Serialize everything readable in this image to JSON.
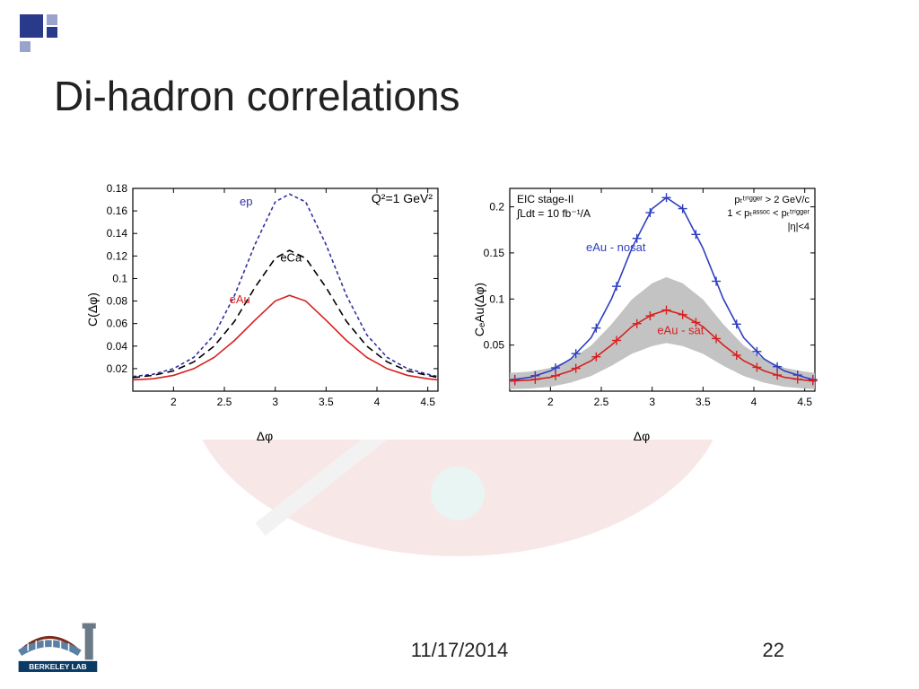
{
  "slide": {
    "title": "Di-hadron correlations",
    "date": "11/17/2014",
    "page": "22",
    "accent_color": "#2a3a8a",
    "corner_light": "#9aa3cc"
  },
  "left_chart": {
    "type": "line",
    "title": "Q²=1 GeV²",
    "title_fontsize": 14,
    "xlabel": "Δφ",
    "ylabel": "C(Δφ)",
    "label_fontsize": 14,
    "xlim": [
      1.6,
      4.6
    ],
    "ylim": [
      0,
      0.18
    ],
    "xtick_start": 2,
    "xtick_step": 0.5,
    "ytick_start": 0.02,
    "ytick_step": 0.02,
    "background_color": "#ffffff",
    "axis_color": "#000000",
    "tick_len": 5,
    "series": [
      {
        "name": "ep",
        "color": "#3030a0",
        "width": 1.6,
        "dash": "4 3",
        "label_pos": [
          2.65,
          0.165
        ],
        "data": [
          [
            1.6,
            0.013
          ],
          [
            1.8,
            0.015
          ],
          [
            2.0,
            0.02
          ],
          [
            2.2,
            0.03
          ],
          [
            2.4,
            0.05
          ],
          [
            2.6,
            0.085
          ],
          [
            2.8,
            0.13
          ],
          [
            3.0,
            0.168
          ],
          [
            3.14,
            0.175
          ],
          [
            3.3,
            0.168
          ],
          [
            3.5,
            0.13
          ],
          [
            3.7,
            0.085
          ],
          [
            3.9,
            0.05
          ],
          [
            4.1,
            0.03
          ],
          [
            4.3,
            0.02
          ],
          [
            4.5,
            0.015
          ],
          [
            4.6,
            0.013
          ]
        ]
      },
      {
        "name": "eCa",
        "color": "#000000",
        "width": 1.6,
        "dash": "8 5",
        "label_pos": [
          3.05,
          0.115
        ],
        "data": [
          [
            1.6,
            0.012
          ],
          [
            1.8,
            0.014
          ],
          [
            2.0,
            0.018
          ],
          [
            2.2,
            0.026
          ],
          [
            2.4,
            0.04
          ],
          [
            2.6,
            0.062
          ],
          [
            2.8,
            0.092
          ],
          [
            3.0,
            0.118
          ],
          [
            3.14,
            0.125
          ],
          [
            3.3,
            0.118
          ],
          [
            3.5,
            0.092
          ],
          [
            3.7,
            0.062
          ],
          [
            3.9,
            0.04
          ],
          [
            4.1,
            0.026
          ],
          [
            4.3,
            0.018
          ],
          [
            4.5,
            0.014
          ],
          [
            4.6,
            0.012
          ]
        ]
      },
      {
        "name": "eAu",
        "color": "#d62020",
        "width": 1.6,
        "dash": "",
        "label_pos": [
          2.55,
          0.078
        ],
        "data": [
          [
            1.6,
            0.01
          ],
          [
            1.8,
            0.011
          ],
          [
            2.0,
            0.014
          ],
          [
            2.2,
            0.02
          ],
          [
            2.4,
            0.03
          ],
          [
            2.6,
            0.045
          ],
          [
            2.8,
            0.063
          ],
          [
            3.0,
            0.08
          ],
          [
            3.14,
            0.085
          ],
          [
            3.3,
            0.08
          ],
          [
            3.5,
            0.063
          ],
          [
            3.7,
            0.045
          ],
          [
            3.9,
            0.03
          ],
          [
            4.1,
            0.02
          ],
          [
            4.3,
            0.014
          ],
          [
            4.5,
            0.011
          ],
          [
            4.6,
            0.01
          ]
        ]
      }
    ]
  },
  "right_chart": {
    "type": "line",
    "top_left_text": [
      "EIC stage-II",
      "∫Ldt = 10 fb⁻¹/A"
    ],
    "top_right_text": [
      "pₜᵗʳⁱᵍᵍᵉʳ > 2 GeV/c",
      "1 < pₜᵃˢˢᵒᶜ < pₜᵗʳⁱᵍᵍᵉʳ",
      "|η|<4"
    ],
    "xlabel": "Δφ",
    "ylabel": "CₑAu(Δφ)",
    "label_fontsize": 14,
    "xlim": [
      1.6,
      4.6
    ],
    "ylim": [
      0,
      0.22
    ],
    "xtick_start": 2,
    "xtick_step": 0.5,
    "ytick_start": 0.05,
    "ytick_step": 0.05,
    "background_color": "#ffffff",
    "axis_color": "#000000",
    "tick_len": 5,
    "error_band": {
      "color": "#bdbdbd",
      "around": "eAu - sat",
      "frac": 0.35
    },
    "series": [
      {
        "name": "eAu - nosat",
        "color": "#2e3fbf",
        "width": 1.6,
        "dash": "",
        "label_pos": [
          2.35,
          0.152
        ],
        "marker": "plus",
        "marker_size": 5,
        "points_x": [
          1.65,
          1.85,
          2.05,
          2.25,
          2.45,
          2.65,
          2.85,
          2.98,
          3.14,
          3.3,
          3.43,
          3.63,
          3.83,
          4.03,
          4.23,
          4.43,
          4.58
        ],
        "data": [
          [
            1.6,
            0.012
          ],
          [
            1.8,
            0.015
          ],
          [
            2.0,
            0.022
          ],
          [
            2.2,
            0.035
          ],
          [
            2.4,
            0.058
          ],
          [
            2.6,
            0.1
          ],
          [
            2.8,
            0.155
          ],
          [
            3.0,
            0.198
          ],
          [
            3.14,
            0.21
          ],
          [
            3.3,
            0.198
          ],
          [
            3.5,
            0.155
          ],
          [
            3.7,
            0.1
          ],
          [
            3.9,
            0.058
          ],
          [
            4.1,
            0.035
          ],
          [
            4.3,
            0.022
          ],
          [
            4.5,
            0.015
          ],
          [
            4.6,
            0.012
          ]
        ]
      },
      {
        "name": "eAu - sat",
        "color": "#d62020",
        "width": 1.6,
        "dash": "",
        "label_pos": [
          3.05,
          0.062
        ],
        "marker": "plus",
        "marker_size": 5,
        "points_x": [
          1.65,
          1.85,
          2.05,
          2.25,
          2.45,
          2.65,
          2.85,
          2.98,
          3.14,
          3.3,
          3.43,
          3.63,
          3.83,
          4.03,
          4.23,
          4.43,
          4.58
        ],
        "data": [
          [
            1.6,
            0.011
          ],
          [
            1.8,
            0.012
          ],
          [
            2.0,
            0.015
          ],
          [
            2.2,
            0.022
          ],
          [
            2.4,
            0.033
          ],
          [
            2.6,
            0.05
          ],
          [
            2.8,
            0.07
          ],
          [
            3.0,
            0.083
          ],
          [
            3.14,
            0.088
          ],
          [
            3.3,
            0.083
          ],
          [
            3.5,
            0.07
          ],
          [
            3.7,
            0.05
          ],
          [
            3.9,
            0.033
          ],
          [
            4.1,
            0.022
          ],
          [
            4.3,
            0.015
          ],
          [
            4.5,
            0.012
          ],
          [
            4.6,
            0.011
          ]
        ]
      }
    ]
  },
  "logo": {
    "label": "BERKELEY LAB",
    "dome_color": "#5a80a6",
    "roof_color": "#7d2a1a",
    "tower_color": "#6a7a88",
    "text_bg": "#0a3a66",
    "text_color": "#ffffff"
  }
}
